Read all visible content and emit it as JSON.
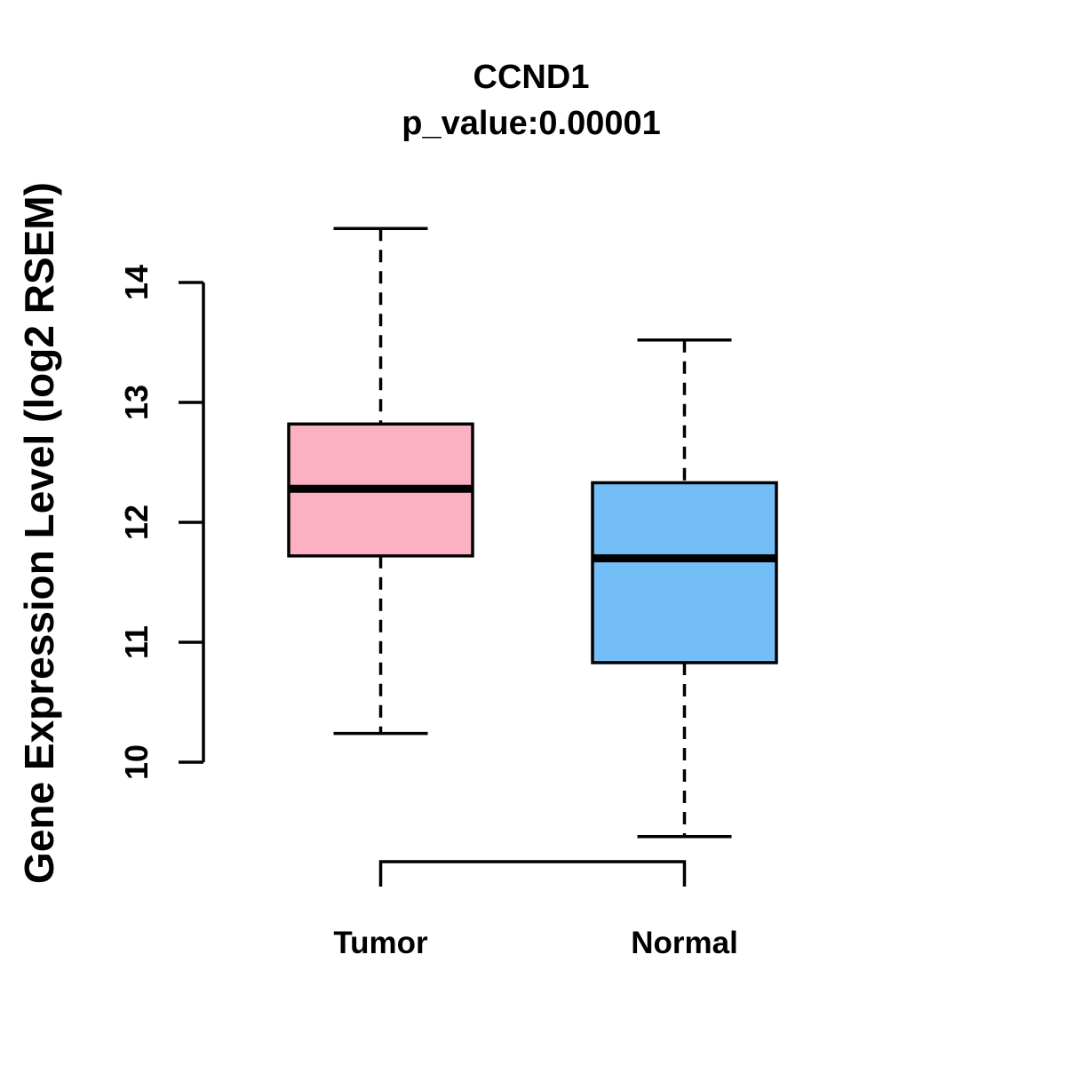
{
  "title": "CCND1",
  "subtitle": "p_value:0.00001",
  "chart_data": {
    "type": "boxplot",
    "title": "CCND1",
    "subtitle": "p_value:0.00001",
    "ylabel": "Gene Expression Level (log2 RSEM)",
    "xlabel": "",
    "yticks": [
      10,
      11,
      12,
      13,
      14
    ],
    "ylim": [
      9.0,
      14.8
    ],
    "grid": false,
    "legend": "none",
    "categories": [
      "Tumor",
      "Normal"
    ],
    "series": [
      {
        "name": "Tumor",
        "color": "#FCB1C3",
        "border_color": "#000000",
        "whisker_low": 10.24,
        "q1": 11.72,
        "median": 12.28,
        "q3": 12.82,
        "whisker_high": 14.45
      },
      {
        "name": "Normal",
        "color": "#74BEF7",
        "border_color": "#000000",
        "whisker_low": 9.38,
        "q1": 10.83,
        "median": 11.7,
        "q3": 12.33,
        "whisker_high": 13.52
      }
    ]
  }
}
